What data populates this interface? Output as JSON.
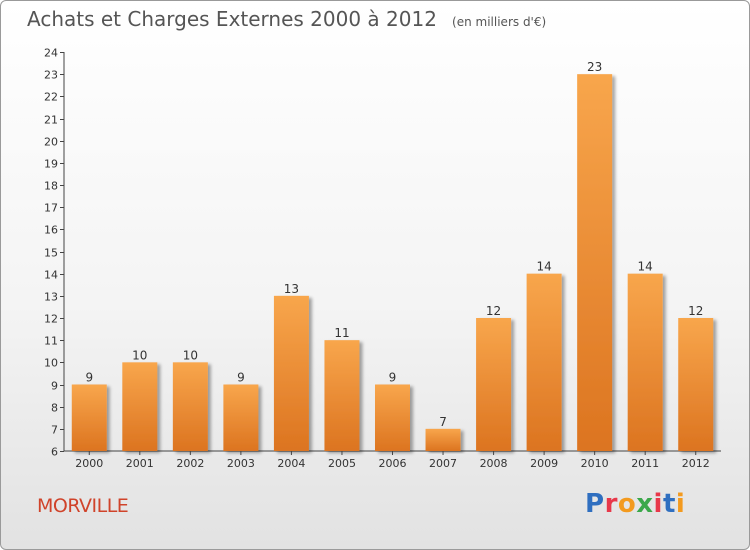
{
  "chart_title": "Achats et Charges Externes 2000 à 2012",
  "chart_subtitle": "(en milliers d'€)",
  "town_name": "MORVILLE",
  "logo_text": "Proxiti",
  "colors": {
    "bar_top": "#f8a64c",
    "bar_bottom": "#dc7420",
    "town": "#d0432a",
    "logo": [
      "#2f6fc0",
      "#e8384a",
      "#f39a1e",
      "#3aa84a",
      "#e8384a",
      "#2f6fc0",
      "#f39a1e"
    ]
  },
  "chart_data": {
    "type": "bar",
    "title": "Achats et Charges Externes 2000 à 2012",
    "subtitle": "(en milliers d'€)",
    "categories": [
      "2000",
      "2001",
      "2002",
      "2003",
      "2004",
      "2005",
      "2006",
      "2007",
      "2008",
      "2009",
      "2010",
      "2011",
      "2012"
    ],
    "values": [
      9,
      10,
      10,
      9,
      13,
      11,
      9,
      7,
      12,
      14,
      23,
      14,
      12
    ],
    "ylim": [
      6,
      24
    ],
    "yticks": [
      6,
      7,
      8,
      9,
      10,
      11,
      12,
      13,
      14,
      15,
      16,
      17,
      18,
      19,
      20,
      21,
      22,
      23,
      24
    ],
    "grid": false,
    "data_labels": true
  }
}
